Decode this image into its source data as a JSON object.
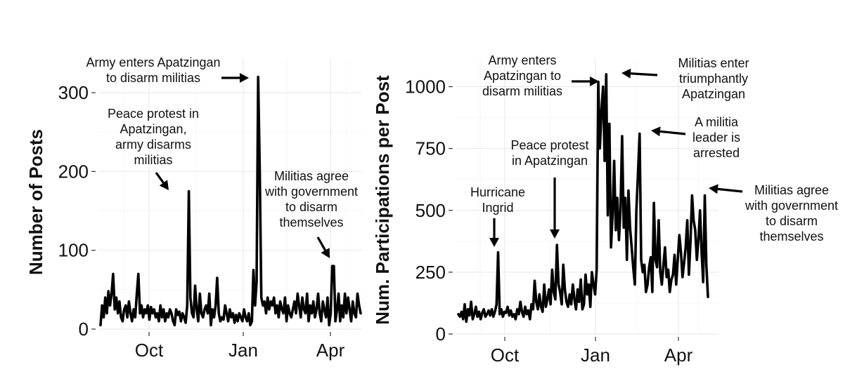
{
  "chart_data": [
    {
      "type": "line",
      "title": "",
      "xlabel": "",
      "ylabel": "Number of Posts",
      "x_ticks": [
        "Oct",
        "Jan",
        "Apr"
      ],
      "y_ticks": [
        0,
        100,
        200,
        300
      ],
      "ylim": [
        0,
        320
      ],
      "grid": true,
      "series": [
        {
          "values": [
            5,
            30,
            15,
            40,
            20,
            48,
            30,
            45,
            70,
            25,
            40,
            20,
            35,
            15,
            10,
            25,
            30,
            15,
            35,
            20,
            10,
            25,
            15,
            45,
            70,
            20,
            30,
            15,
            25,
            20,
            30,
            12,
            28,
            20,
            25,
            15,
            20,
            10,
            30,
            15,
            25,
            10,
            20,
            15,
            25,
            20,
            10,
            5,
            25,
            18,
            22,
            10,
            20,
            15,
            8,
            30,
            175,
            40,
            20,
            15,
            55,
            25,
            10,
            45,
            20,
            15,
            25,
            30,
            20,
            45,
            5,
            25,
            15,
            30,
            65,
            20,
            10,
            15,
            12,
            30,
            20,
            10,
            25,
            15,
            20,
            8,
            18,
            10,
            20,
            15,
            10,
            25,
            15,
            10,
            20,
            5,
            10,
            75,
            30,
            60,
            320,
            200,
            40,
            30,
            35,
            20,
            40,
            25,
            35,
            30,
            40,
            20,
            30,
            15,
            35,
            25,
            20,
            40,
            10,
            30,
            20,
            15,
            25,
            35,
            20,
            45,
            30,
            15,
            40,
            25,
            20,
            45,
            10,
            30,
            20,
            35,
            15,
            25,
            45,
            20,
            10,
            35,
            25,
            15,
            40,
            5,
            20,
            80,
            80,
            10,
            25,
            45,
            10,
            30,
            15,
            45,
            20,
            40,
            25,
            10,
            35,
            20,
            15,
            45,
            30,
            20
          ]
        }
      ],
      "annotations": [
        {
          "label": [
            "Army enters Apatzingan",
            "to disarm militias"
          ]
        },
        {
          "label": [
            "Peace protest in",
            "Apatzingan,",
            "army disarms",
            "militias"
          ]
        },
        {
          "label": [
            "Militias agree",
            "with government",
            "to disarm",
            "themselves"
          ]
        }
      ]
    },
    {
      "type": "line",
      "title": "",
      "xlabel": "",
      "ylabel": "Num. Participations per Post",
      "x_ticks": [
        "Oct",
        "Jan",
        "Apr"
      ],
      "y_ticks": [
        0,
        250,
        500,
        750,
        1000
      ],
      "ylim": [
        0,
        1050
      ],
      "grid": true,
      "series": [
        {
          "values": [
            80,
            70,
            90,
            60,
            120,
            50,
            100,
            75,
            130,
            60,
            80,
            110,
            70,
            90,
            60,
            85,
            100,
            70,
            80,
            95,
            75,
            100,
            70,
            90,
            120,
            330,
            80,
            100,
            70,
            90,
            85,
            110,
            75,
            95,
            70,
            80,
            60,
            100,
            80,
            130,
            90,
            70,
            110,
            80,
            95,
            60,
            120,
            100,
            215,
            130,
            100,
            160,
            110,
            90,
            200,
            110,
            140,
            180,
            120,
            260,
            170,
            140,
            360,
            200,
            170,
            120,
            280,
            180,
            130,
            110,
            160,
            120,
            200,
            140,
            100,
            180,
            130,
            220,
            100,
            120,
            240,
            160,
            200,
            110,
            250,
            200,
            160,
            260,
            1020,
            750,
            900,
            1000,
            700,
            1050,
            480,
            850,
            350,
            480,
            700,
            420,
            550,
            380,
            500,
            800,
            430,
            550,
            300,
            580,
            430,
            350,
            270,
            200,
            500,
            650,
            810,
            300,
            250,
            280,
            170,
            200,
            270,
            310,
            170,
            530,
            300,
            270,
            460,
            250,
            200,
            280,
            350,
            230,
            260,
            170,
            220,
            240,
            320,
            200,
            300,
            400,
            330,
            230,
            290,
            350,
            460,
            240,
            370,
            560,
            460,
            420,
            300,
            380,
            500,
            330,
            210,
            560,
            280,
            150
          ]
        }
      ],
      "annotations": [
        {
          "label": [
            "Hurricane",
            "Ingrid"
          ]
        },
        {
          "label": [
            "Peace protest",
            "in Apatzingan"
          ]
        },
        {
          "label": [
            "Army enters",
            "Apatzingan to",
            "disarm militias"
          ]
        },
        {
          "label": [
            "Militias enter",
            "triumphantly",
            "Apatzingan"
          ]
        },
        {
          "label": [
            "A militia",
            "leader is",
            "arrested"
          ]
        },
        {
          "label": [
            "Militias agree",
            "with government",
            "to disarm",
            "themselves"
          ]
        }
      ]
    }
  ]
}
